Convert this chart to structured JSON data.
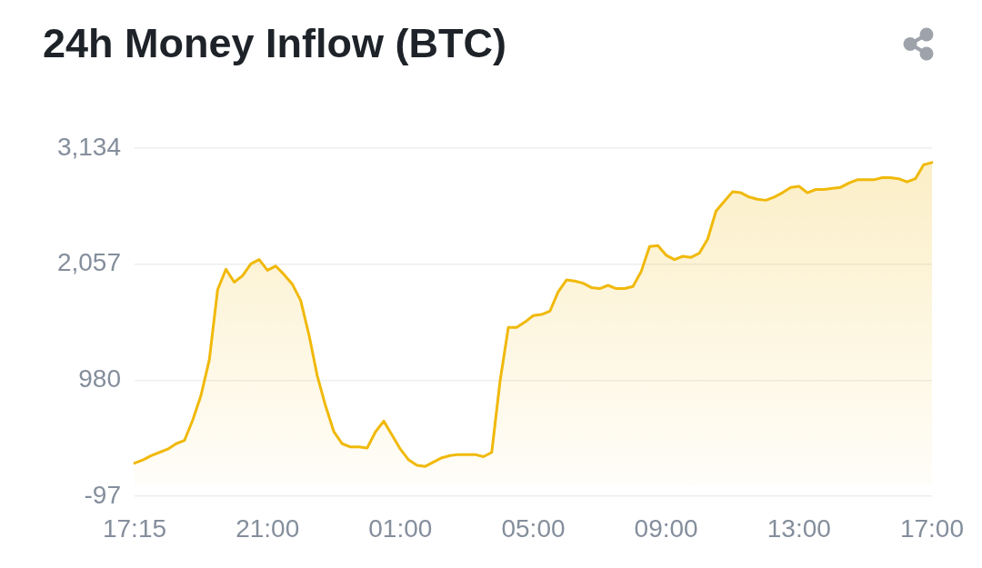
{
  "chart_data": {
    "type": "area",
    "title": "24h Money Inflow (BTC)",
    "categories": [
      "17:15",
      null,
      null,
      null,
      null,
      null,
      null,
      null,
      null,
      null,
      null,
      null,
      null,
      null,
      null,
      null,
      "21:00",
      null,
      null,
      null,
      null,
      null,
      null,
      null,
      null,
      null,
      null,
      null,
      null,
      null,
      null,
      null,
      "01:00",
      null,
      null,
      null,
      null,
      null,
      null,
      null,
      null,
      null,
      null,
      null,
      null,
      null,
      null,
      null,
      "05:00",
      null,
      null,
      null,
      null,
      null,
      null,
      null,
      null,
      null,
      null,
      null,
      null,
      null,
      null,
      null,
      "09:00",
      null,
      null,
      null,
      null,
      null,
      null,
      null,
      null,
      null,
      null,
      null,
      null,
      null,
      null,
      null,
      "13:00",
      null,
      null,
      null,
      null,
      null,
      null,
      null,
      null,
      null,
      null,
      null,
      null,
      null,
      null,
      null,
      "17:00"
    ],
    "series": [
      {
        "color": "#f0b90b",
        "values": [
          210,
          240,
          280,
          310,
          340,
          390,
          420,
          610,
          840,
          1170,
          1820,
          2010,
          1890,
          1950,
          2060,
          2100,
          2000,
          2040,
          1960,
          1870,
          1720,
          1400,
          1020,
          740,
          500,
          390,
          360,
          360,
          350,
          500,
          600,
          470,
          340,
          240,
          190,
          180,
          220,
          260,
          280,
          290,
          290,
          290,
          270,
          310,
          970,
          1470,
          1470,
          1520,
          1580,
          1590,
          1620,
          1800,
          1910,
          1900,
          1880,
          1840,
          1830,
          1860,
          1830,
          1830,
          1850,
          1990,
          2220,
          2230,
          2140,
          2100,
          2130,
          2120,
          2160,
          2290,
          2550,
          2640,
          2730,
          2720,
          2680,
          2660,
          2650,
          2680,
          2720,
          2770,
          2780,
          2720,
          2750,
          2750,
          2760,
          2770,
          2810,
          2840,
          2840,
          2840,
          2860,
          2860,
          2850,
          2820,
          2850,
          2980,
          3000
        ]
      }
    ],
    "ylim": [
      -97,
      3134
    ],
    "yticks": [
      -97,
      980,
      {
        "value": 2057,
        "label": "2,057"
      },
      {
        "value": 3134,
        "label": "3,134"
      }
    ],
    "grid": "y",
    "legend": false,
    "marker": "none",
    "line_style": "solid"
  }
}
